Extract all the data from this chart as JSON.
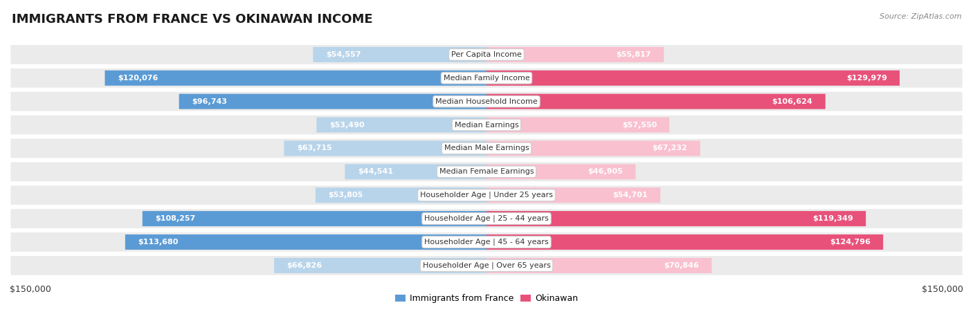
{
  "title": "IMMIGRANTS FROM FRANCE VS OKINAWAN INCOME",
  "source": "Source: ZipAtlas.com",
  "categories": [
    "Per Capita Income",
    "Median Family Income",
    "Median Household Income",
    "Median Earnings",
    "Median Male Earnings",
    "Median Female Earnings",
    "Householder Age | Under 25 years",
    "Householder Age | 25 - 44 years",
    "Householder Age | 45 - 64 years",
    "Householder Age | Over 65 years"
  ],
  "france_values": [
    54557,
    120076,
    96743,
    53490,
    63715,
    44541,
    53805,
    108257,
    113680,
    66826
  ],
  "okinawa_values": [
    55817,
    129979,
    106624,
    57550,
    67232,
    46905,
    54701,
    119349,
    124796,
    70846
  ],
  "france_labels": [
    "$54,557",
    "$120,076",
    "$96,743",
    "$53,490",
    "$63,715",
    "$44,541",
    "$53,805",
    "$108,257",
    "$113,680",
    "$66,826"
  ],
  "okinawa_labels": [
    "$55,817",
    "$129,979",
    "$106,624",
    "$57,550",
    "$67,232",
    "$46,905",
    "$54,701",
    "$119,349",
    "$124,796",
    "$70,846"
  ],
  "france_color_light": "#b8d4ea",
  "france_color_dark": "#5b9bd5",
  "okinawa_color_light": "#f9c0d0",
  "okinawa_color_dark": "#e8517a",
  "dark_threshold": 80000,
  "label_color_inside": "#ffffff",
  "label_color_outside": "#555555",
  "max_value": 150000,
  "bg_color": "#ffffff",
  "row_bg_color": "#ebebeb",
  "row_bg_color_alt": "#f5f5f5",
  "xlabel_left": "$150,000",
  "xlabel_right": "$150,000",
  "legend_france": "Immigrants from France",
  "legend_okinawa": "Okinawan",
  "title_fontsize": 13,
  "label_fontsize": 8,
  "category_fontsize": 8
}
